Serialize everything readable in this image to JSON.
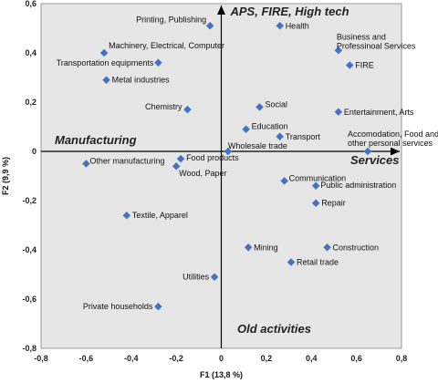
{
  "chart_data": {
    "type": "scatter",
    "xlabel": "F1 (13,8 %)",
    "ylabel": "F2 (9,9 %)",
    "xlim": [
      -0.8,
      0.8
    ],
    "ylim": [
      -0.8,
      0.6
    ],
    "xticks": [
      "-0,8",
      "-0,6",
      "-0,4",
      "-0,2",
      "0",
      "0,2",
      "0,4",
      "0,6",
      "0,8"
    ],
    "yticks": [
      "0,6",
      "0,4",
      "0,2",
      "0",
      "-0,2",
      "-0,4",
      "-0,6",
      "-0,8"
    ],
    "grid": false,
    "marker_color": "#4472C4",
    "background_color": "#E6E6E6",
    "axis_annotations": {
      "top": "APS, FIRE, High tech",
      "left": "Manufacturing",
      "right": "Services",
      "bottom": "Old activities"
    },
    "points": [
      {
        "label": "Printing, Publishing",
        "x": -0.05,
        "y": 0.51
      },
      {
        "label": "Health",
        "x": 0.26,
        "y": 0.51
      },
      {
        "label": "Machinery, Electrical, Computer",
        "x": -0.52,
        "y": 0.4
      },
      {
        "label": "Business and Professinoal Services",
        "x": 0.52,
        "y": 0.41
      },
      {
        "label": "Transportation equipments",
        "x": -0.28,
        "y": 0.36
      },
      {
        "label": "FIRE",
        "x": 0.57,
        "y": 0.35
      },
      {
        "label": "Metal industries",
        "x": -0.51,
        "y": 0.29
      },
      {
        "label": "Chemistry",
        "x": -0.15,
        "y": 0.17
      },
      {
        "label": "Social",
        "x": 0.17,
        "y": 0.18
      },
      {
        "label": "Entertainment, Arts",
        "x": 0.52,
        "y": 0.16
      },
      {
        "label": "Education",
        "x": 0.11,
        "y": 0.09
      },
      {
        "label": "Transport",
        "x": 0.26,
        "y": 0.06
      },
      {
        "label": "Wholesale trade",
        "x": 0.03,
        "y": 0.0
      },
      {
        "label": "Accomodation, Food and other personal services",
        "x": 0.65,
        "y": 0.0
      },
      {
        "label": "Other manufacturing",
        "x": -0.6,
        "y": -0.05
      },
      {
        "label": "Food products",
        "x": -0.18,
        "y": -0.03
      },
      {
        "label": "Wood, Paper",
        "x": -0.2,
        "y": -0.06
      },
      {
        "label": "Communication",
        "x": 0.28,
        "y": -0.12
      },
      {
        "label": "Public administration",
        "x": 0.42,
        "y": -0.14
      },
      {
        "label": "Repair",
        "x": 0.42,
        "y": -0.21
      },
      {
        "label": "Textile, Apparel",
        "x": -0.42,
        "y": -0.26
      },
      {
        "label": "Mining",
        "x": 0.12,
        "y": -0.39
      },
      {
        "label": "Construction",
        "x": 0.47,
        "y": -0.39
      },
      {
        "label": "Retail trade",
        "x": 0.31,
        "y": -0.45
      },
      {
        "label": "Utilities",
        "x": -0.03,
        "y": -0.51
      },
      {
        "label": "Private households",
        "x": -0.28,
        "y": -0.63
      }
    ]
  }
}
